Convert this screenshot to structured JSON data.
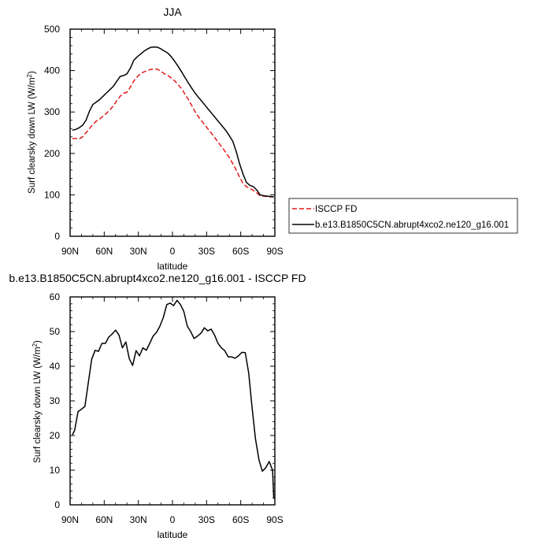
{
  "chart_data": [
    {
      "type": "line",
      "title": "JJA",
      "xlabel": "latitude",
      "ylabel_main": "Surf clearsky down LW (W/m",
      "ylabel_sup": "2",
      "ylabel_close": ")",
      "xlim": [
        90,
        -90
      ],
      "ylim": [
        0,
        500
      ],
      "xticks": [
        90,
        60,
        30,
        0,
        -30,
        -60,
        -90
      ],
      "xtick_labels": [
        "90N",
        "60N",
        "30N",
        "0",
        "30S",
        "60S",
        "90S"
      ],
      "yticks": [
        0,
        100,
        200,
        300,
        400,
        500
      ],
      "ytick_labels": [
        "0",
        "100",
        "200",
        "300",
        "400",
        "500"
      ],
      "legend_position": "right",
      "series": [
        {
          "name": "ISCCP FD",
          "color": "#e41a1c",
          "dash": "dashed",
          "x": [
            88,
            85,
            82,
            79,
            76,
            73,
            70,
            67,
            64,
            61,
            58,
            55,
            52,
            49,
            46,
            43,
            40,
            37,
            34,
            31,
            28,
            25,
            22,
            19,
            16,
            13,
            10,
            7,
            4,
            1,
            -2,
            -5,
            -8,
            -11,
            -14,
            -17,
            -20,
            -23,
            -26,
            -29,
            -32,
            -35,
            -38,
            -41,
            -44,
            -47,
            -50,
            -53,
            -56,
            -59,
            -62,
            -65,
            -68,
            -71,
            -74,
            -77,
            -80,
            -83,
            -86,
            -89
          ],
          "y": [
            236,
            236,
            235,
            240,
            250,
            260,
            270,
            278,
            283,
            290,
            297,
            305,
            315,
            327,
            338,
            345,
            348,
            360,
            375,
            385,
            393,
            397,
            400,
            403,
            404,
            403,
            398,
            392,
            388,
            382,
            375,
            366,
            356,
            343,
            330,
            315,
            300,
            288,
            277,
            267,
            256,
            246,
            235,
            224,
            213,
            202,
            190,
            175,
            160,
            143,
            127,
            120,
            115,
            111,
            105,
            98,
            97,
            96,
            95,
            95
          ]
        },
        {
          "name": "b.e13.B1850C5CN.abrupt4xco2.ne120_g16.001",
          "color": "#000000",
          "dash": "solid",
          "x": [
            88,
            85,
            82,
            79,
            76,
            73,
            70,
            67,
            64,
            61,
            58,
            55,
            52,
            49,
            46,
            43,
            40,
            37,
            34,
            31,
            28,
            25,
            22,
            19,
            16,
            13,
            10,
            7,
            4,
            1,
            -2,
            -5,
            -8,
            -11,
            -14,
            -17,
            -20,
            -23,
            -26,
            -29,
            -32,
            -35,
            -38,
            -41,
            -44,
            -47,
            -50,
            -53,
            -56,
            -59,
            -62,
            -65,
            -68,
            -71,
            -74,
            -77,
            -80,
            -83,
            -86,
            -89
          ],
          "y": [
            256,
            258,
            262,
            268,
            280,
            302,
            318,
            324,
            330,
            338,
            346,
            354,
            362,
            374,
            386,
            388,
            392,
            406,
            425,
            433,
            440,
            447,
            452,
            456,
            457,
            456,
            452,
            447,
            442,
            433,
            422,
            410,
            397,
            383,
            370,
            357,
            345,
            335,
            325,
            315,
            305,
            295,
            285,
            275,
            265,
            255,
            243,
            229,
            205,
            175,
            150,
            130,
            123,
            120,
            112,
            100,
            98,
            97,
            96,
            95
          ]
        }
      ]
    },
    {
      "type": "line",
      "title": "b.e13.B1850C5CN.abrupt4xco2.ne120_g16.001 - ISCCP FD",
      "xlabel": "latitude",
      "ylabel_main": "Surf clearsky down LW (W/m",
      "ylabel_sup": "2",
      "ylabel_close": ")",
      "xlim": [
        90,
        -90
      ],
      "ylim": [
        0,
        60
      ],
      "xticks": [
        90,
        60,
        30,
        0,
        -30,
        -60,
        -90
      ],
      "xtick_labels": [
        "90N",
        "60N",
        "30N",
        "0",
        "30S",
        "60S",
        "90S"
      ],
      "yticks": [
        0,
        10,
        20,
        30,
        40,
        50,
        60
      ],
      "ytick_labels": [
        "0",
        "10",
        "20",
        "30",
        "40",
        "50",
        "60"
      ],
      "series": [
        {
          "color": "#000000",
          "dash": "solid",
          "x": [
            88,
            86,
            83,
            80,
            77,
            74,
            71,
            68,
            65,
            62,
            59,
            56,
            53,
            50,
            47,
            44,
            41,
            38,
            35,
            32,
            29,
            26,
            23,
            20,
            17,
            14,
            11,
            8,
            5,
            2,
            -1,
            -4,
            -7,
            -10,
            -13,
            -16,
            -19,
            -22,
            -25,
            -28,
            -31,
            -34,
            -37,
            -40,
            -43,
            -46,
            -49,
            -52,
            -55,
            -58,
            -61,
            -64,
            -67,
            -70,
            -73,
            -76,
            -79,
            -82,
            -85,
            -88,
            -89
          ],
          "y": [
            20.2,
            21.5,
            26.9,
            27.6,
            28.4,
            35.2,
            42.0,
            44.6,
            44.3,
            46.6,
            46.6,
            48.4,
            49.3,
            50.4,
            49.0,
            45.3,
            47.0,
            42.2,
            40.2,
            44.5,
            43.0,
            45.3,
            44.6,
            46.6,
            48.7,
            49.8,
            51.6,
            54.1,
            57.8,
            58.2,
            57.5,
            59.0,
            57.8,
            55.8,
            51.6,
            50.0,
            48.0,
            48.7,
            49.5,
            51.1,
            50.2,
            50.7,
            49.0,
            46.6,
            45.3,
            44.5,
            42.7,
            42.7,
            42.3,
            43.0,
            44.0,
            43.9,
            38.0,
            28.0,
            19.0,
            13.0,
            9.7,
            10.7,
            12.5,
            10.0,
            1.8
          ]
        }
      ]
    }
  ]
}
